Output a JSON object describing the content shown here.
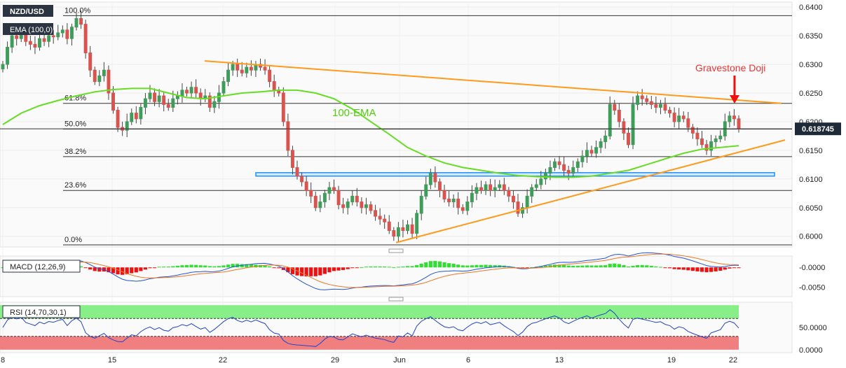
{
  "chart_data": [
    {
      "type": "candlestick",
      "symbol": "NZD/USD",
      "indicator_label": "EMA (100,0)",
      "ema_annotation": "100-EMA",
      "pattern_annotation": "Gravestone Doji",
      "current_price": "0.618745",
      "ylim": [
        0.5985,
        0.6405
      ],
      "y_ticks": [
        "0.6400",
        "0.6350",
        "0.6300",
        "0.6250",
        "0.6200",
        "0.6150",
        "0.6100",
        "0.6050",
        "0.6000"
      ],
      "x_ticks": [
        "8",
        "15",
        "22",
        "29",
        "Jun",
        "6",
        "13",
        "19",
        "22"
      ],
      "fib_levels": [
        {
          "label": "100.0%",
          "value": 0.6385
        },
        {
          "label": "61.8%",
          "value": 0.6232
        },
        {
          "label": "50.0%",
          "value": 0.6187
        },
        {
          "label": "38.2%",
          "value": 0.6139
        },
        {
          "label": "23.6%",
          "value": 0.608
        },
        {
          "label": "0.0%",
          "value": 0.5985
        }
      ],
      "support_zone": [
        0.6105,
        0.6111
      ],
      "closes": [
        0.63,
        0.633,
        0.635,
        0.6345,
        0.6355,
        0.634,
        0.6335,
        0.633,
        0.6345,
        0.634,
        0.635,
        0.6348,
        0.6355,
        0.636,
        0.6345,
        0.6365,
        0.638,
        0.637,
        0.632,
        0.629,
        0.627,
        0.628,
        0.629,
        0.625,
        0.622,
        0.619,
        0.6185,
        0.62,
        0.6215,
        0.6205,
        0.6225,
        0.624,
        0.625,
        0.6235,
        0.6245,
        0.623,
        0.6225,
        0.624,
        0.6245,
        0.6255,
        0.625,
        0.626,
        0.625,
        0.624,
        0.6245,
        0.6225,
        0.6235,
        0.625,
        0.627,
        0.629,
        0.63,
        0.629,
        0.6285,
        0.6295,
        0.629,
        0.63,
        0.6295,
        0.629,
        0.627,
        0.6255,
        0.625,
        0.62,
        0.615,
        0.612,
        0.6105,
        0.6095,
        0.608,
        0.607,
        0.605,
        0.606,
        0.6075,
        0.6085,
        0.608,
        0.6055,
        0.605,
        0.606,
        0.607,
        0.606,
        0.605,
        0.6055,
        0.6045,
        0.6035,
        0.603,
        0.6025,
        0.601,
        0.6,
        0.6015,
        0.601,
        0.602,
        0.6005,
        0.604,
        0.607,
        0.609,
        0.611,
        0.6095,
        0.608,
        0.6065,
        0.606,
        0.6065,
        0.605,
        0.6045,
        0.606,
        0.6075,
        0.6085,
        0.608,
        0.609,
        0.608,
        0.6085,
        0.609,
        0.608,
        0.607,
        0.606,
        0.604,
        0.605,
        0.607,
        0.6085,
        0.609,
        0.61,
        0.611,
        0.612,
        0.613,
        0.6125,
        0.6115,
        0.611,
        0.612,
        0.613,
        0.614,
        0.615,
        0.6145,
        0.6155,
        0.6165,
        0.6175,
        0.623,
        0.622,
        0.62,
        0.618,
        0.616,
        0.623,
        0.6245,
        0.624,
        0.6235,
        0.623,
        0.6225,
        0.623,
        0.622,
        0.6215,
        0.62,
        0.621,
        0.6205,
        0.619,
        0.618,
        0.617,
        0.616,
        0.615,
        0.6165,
        0.617,
        0.6175,
        0.62,
        0.621,
        0.6205,
        0.6187
      ],
      "ema": [
        0.6195,
        0.6215,
        0.6228,
        0.6237,
        0.6245,
        0.6252,
        0.6256,
        0.6258,
        0.6258,
        0.625,
        0.6242,
        0.624,
        0.6245,
        0.625,
        0.6252,
        0.6255,
        0.6255,
        0.625,
        0.624,
        0.6222,
        0.62,
        0.6178,
        0.6155,
        0.614,
        0.6128,
        0.612,
        0.6115,
        0.611,
        0.6106,
        0.6104,
        0.6103,
        0.6103,
        0.6105,
        0.611,
        0.6115,
        0.6125,
        0.6135,
        0.6145,
        0.6152,
        0.6155,
        0.6158
      ],
      "macd": {
        "label": "MACD (12,26,9)",
        "ylim": [
          -0.007,
          0.0025
        ],
        "y_ticks": [
          "-0.0000",
          "-0.0050"
        ]
      },
      "rsi": {
        "label": "RSI (14,70,30,1)",
        "ylim": [
          -5,
          105
        ],
        "y_ticks": [
          "50.0000",
          "0.0000"
        ],
        "overbought": 70,
        "oversold": 30
      }
    }
  ]
}
